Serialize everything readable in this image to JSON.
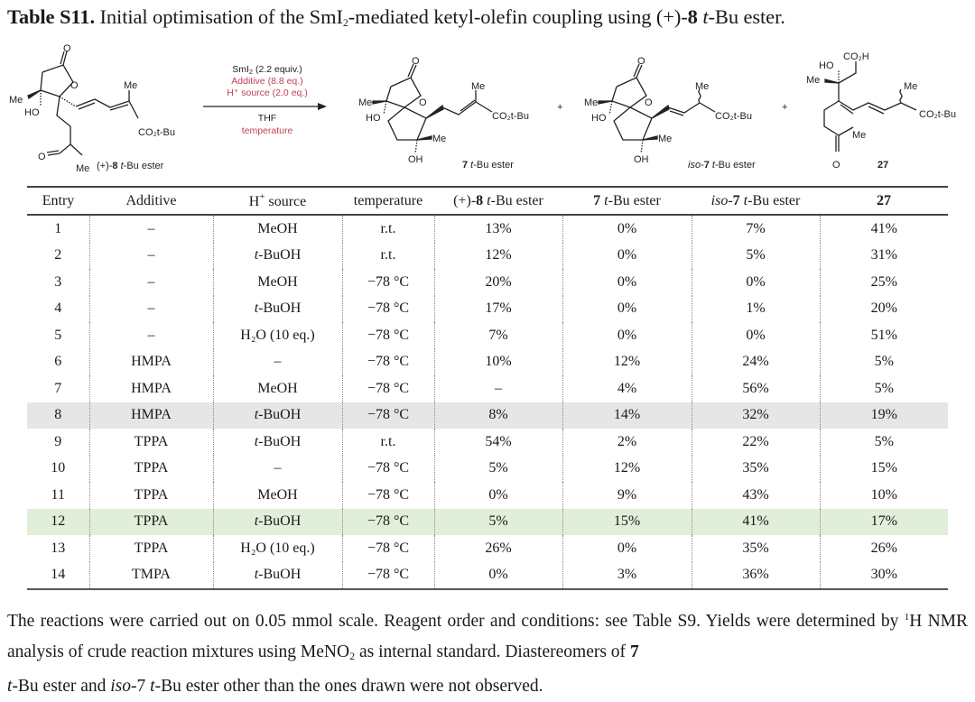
{
  "caption": {
    "label": "Table S11.",
    "text_before": " Initial optimisation of the SmI",
    "sub": "2",
    "text_mid": "-mediated ketyl-olefin coupling using (+)-",
    "compound_bold": "8",
    "text_italic": " t",
    "text_end": "-Bu ester."
  },
  "scheme": {
    "starting_material": {
      "label_prefix": "(+)-",
      "label_bold": "8",
      "label_italic": " t",
      "label_suffix": "-Bu ester",
      "atoms": {
        "me1": "Me",
        "ho": "HO",
        "o_ring": "O",
        "o_carbonyl": "O",
        "me_diene": "Me",
        "ester": "CO₂t-Bu",
        "o_ketone": "O",
        "me_ketone": "Me"
      }
    },
    "conditions": {
      "reagent": "SmI",
      "reagent_sub": "2",
      "reagent_rest": " (2.2 equiv.)",
      "additive": "Additive (8.8 eq.)",
      "h_source": "H⁺ source (2.0 eq.)",
      "solvent": "THF",
      "temperature": "temperature",
      "highlight_color": "#c0405a"
    },
    "plus": "+",
    "product_7": {
      "label_bold": "7",
      "label_italic": " t",
      "label_suffix": "-Bu ester",
      "atoms": {
        "me1": "Me",
        "ho": "HO",
        "o_ring": "O",
        "o_carbonyl": "O",
        "me_ring": "Me",
        "oh": "OH",
        "me_alkene": "Me",
        "ester": "CO₂t-Bu"
      }
    },
    "product_iso7": {
      "label_italic_prefix": "iso",
      "label_dash": "-",
      "label_bold": "7",
      "label_italic": " t",
      "label_suffix": "-Bu ester",
      "atoms": {
        "me1": "Me",
        "ho": "HO",
        "o_ring": "O",
        "o_carbonyl": "O",
        "me_ring": "Me",
        "oh": "OH",
        "me_chain": "Me",
        "ester": "CO₂t-Bu"
      }
    },
    "product_27": {
      "label_bold": "27",
      "atoms": {
        "acid": "CO₂H",
        "ho": "HO",
        "me1": "Me",
        "me_chain": "Me",
        "ester": "CO₂t-Bu",
        "me_ketone": "Me",
        "o_ketone": "O"
      }
    }
  },
  "table": {
    "headers": [
      {
        "text": "Entry"
      },
      {
        "text": "Additive"
      },
      {
        "pre": "H",
        "sup": "+",
        "post": " source"
      },
      {
        "text": "temperature"
      },
      {
        "pre": "(+)-",
        "bold": "8",
        "italic": " t",
        "post": "-Bu ester"
      },
      {
        "bold": "7",
        "italic": " t",
        "post": "-Bu ester"
      },
      {
        "italic_pre": "iso",
        "pre": "-",
        "bold": "7",
        "italic": " t",
        "post": "-Bu ester"
      },
      {
        "bold": "27"
      }
    ],
    "rows": [
      {
        "entry": "1",
        "additive": "–",
        "h_source": "MeOH",
        "temperature": "r.t.",
        "sm_8": "13%",
        "p_7": "0%",
        "p_iso7": "7%",
        "p_27": "41%",
        "highlight": ""
      },
      {
        "entry": "2",
        "additive": "–",
        "h_source": "t-BuOH",
        "temperature": "r.t.",
        "sm_8": "12%",
        "p_7": "0%",
        "p_iso7": "5%",
        "p_27": "31%",
        "highlight": ""
      },
      {
        "entry": "3",
        "additive": "–",
        "h_source": "MeOH",
        "temperature": "−78 °C",
        "sm_8": "20%",
        "p_7": "0%",
        "p_iso7": "0%",
        "p_27": "25%",
        "highlight": ""
      },
      {
        "entry": "4",
        "additive": "–",
        "h_source": "t-BuOH",
        "temperature": "−78 °C",
        "sm_8": "17%",
        "p_7": "0%",
        "p_iso7": "1%",
        "p_27": "20%",
        "highlight": ""
      },
      {
        "entry": "5",
        "additive": "–",
        "h_source": "H₂O (10 eq.)",
        "temperature": "−78 °C",
        "sm_8": "7%",
        "p_7": "0%",
        "p_iso7": "0%",
        "p_27": "51%",
        "highlight": ""
      },
      {
        "entry": "6",
        "additive": "HMPA",
        "h_source": "–",
        "temperature": "−78 °C",
        "sm_8": "10%",
        "p_7": "12%",
        "p_iso7": "24%",
        "p_27": "5%",
        "highlight": ""
      },
      {
        "entry": "7",
        "additive": "HMPA",
        "h_source": "MeOH",
        "temperature": "−78 °C",
        "sm_8": "–",
        "p_7": "4%",
        "p_iso7": "56%",
        "p_27": "5%",
        "highlight": ""
      },
      {
        "entry": "8",
        "additive": "HMPA",
        "h_source": "t-BuOH",
        "temperature": "−78 °C",
        "sm_8": "8%",
        "p_7": "14%",
        "p_iso7": "32%",
        "p_27": "19%",
        "highlight": "grey"
      },
      {
        "entry": "9",
        "additive": "TPPA",
        "h_source": "t-BuOH",
        "temperature": "r.t.",
        "sm_8": "54%",
        "p_7": "2%",
        "p_iso7": "22%",
        "p_27": "5%",
        "highlight": ""
      },
      {
        "entry": "10",
        "additive": "TPPA",
        "h_source": "–",
        "temperature": "−78 °C",
        "sm_8": "5%",
        "p_7": "12%",
        "p_iso7": "35%",
        "p_27": "15%",
        "highlight": ""
      },
      {
        "entry": "11",
        "additive": "TPPA",
        "h_source": "MeOH",
        "temperature": "−78 °C",
        "sm_8": "0%",
        "p_7": "9%",
        "p_iso7": "43%",
        "p_27": "10%",
        "highlight": ""
      },
      {
        "entry": "12",
        "additive": "TPPA",
        "h_source": "t-BuOH",
        "temperature": "−78 °C",
        "sm_8": "5%",
        "p_7": "15%",
        "p_iso7": "41%",
        "p_27": "17%",
        "highlight": "green"
      },
      {
        "entry": "13",
        "additive": "TPPA",
        "h_source": "H₂O (10 eq.)",
        "temperature": "−78 °C",
        "sm_8": "26%",
        "p_7": "0%",
        "p_iso7": "35%",
        "p_27": "26%",
        "highlight": ""
      },
      {
        "entry": "14",
        "additive": "TMPA",
        "h_source": "t-BuOH",
        "temperature": "−78 °C",
        "sm_8": "0%",
        "p_7": "3%",
        "p_iso7": "36%",
        "p_27": "30%",
        "highlight": ""
      }
    ],
    "colors": {
      "highlight_grey": "#e8e5e8",
      "highlight_green": "#e1eed9",
      "rule": "#444444"
    }
  },
  "footnote": {
    "s1": "The reactions were carried out on 0.05 mmol scale. Reagent order and conditions: see Table S9. Yields were determined by ",
    "sup": "1",
    "s2": "H NMR analysis of crude reaction mixtures using MeNO",
    "sub": "2",
    "s3": " as internal standard. Diastereomers of ",
    "bold7a": "7",
    "s4_italic": " t",
    "s5": "-Bu ester and ",
    "iso_italic": "iso",
    "s6": "-",
    "bold7b": "7",
    "s7_italic": " t",
    "s8": "-Bu ester other than the ones drawn were not observed."
  }
}
